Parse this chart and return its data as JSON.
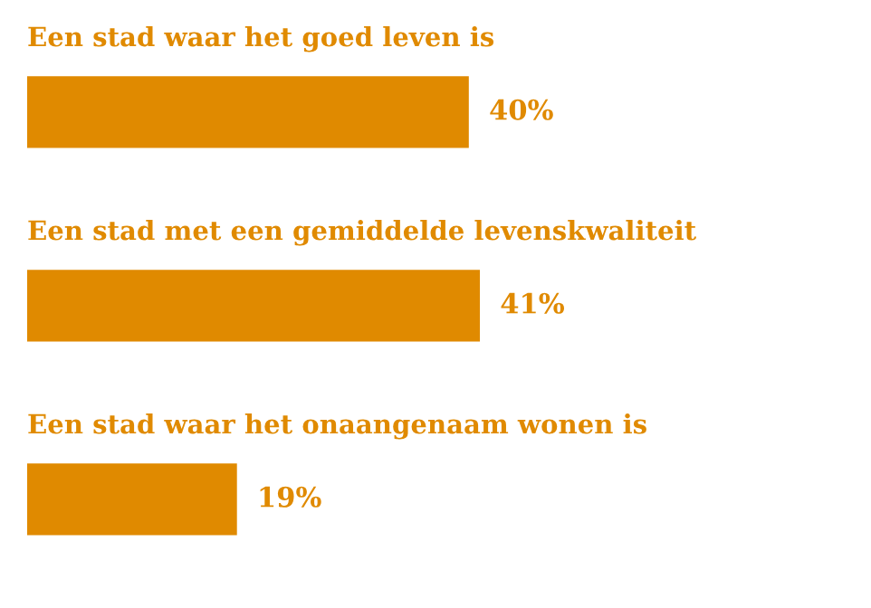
{
  "chart_data": {
    "type": "bar",
    "orientation": "horizontal",
    "categories": [
      "Een stad waar het goed leven is",
      "Een stad met een gemiddelde levenskwaliteit",
      "Een stad waar het onaangenaam wonen is"
    ],
    "values": [
      40,
      41,
      19
    ],
    "value_labels": [
      "40%",
      "41%",
      "19%"
    ],
    "color": "#e08a00",
    "tick_labels": false,
    "grid": false,
    "legend": false
  }
}
